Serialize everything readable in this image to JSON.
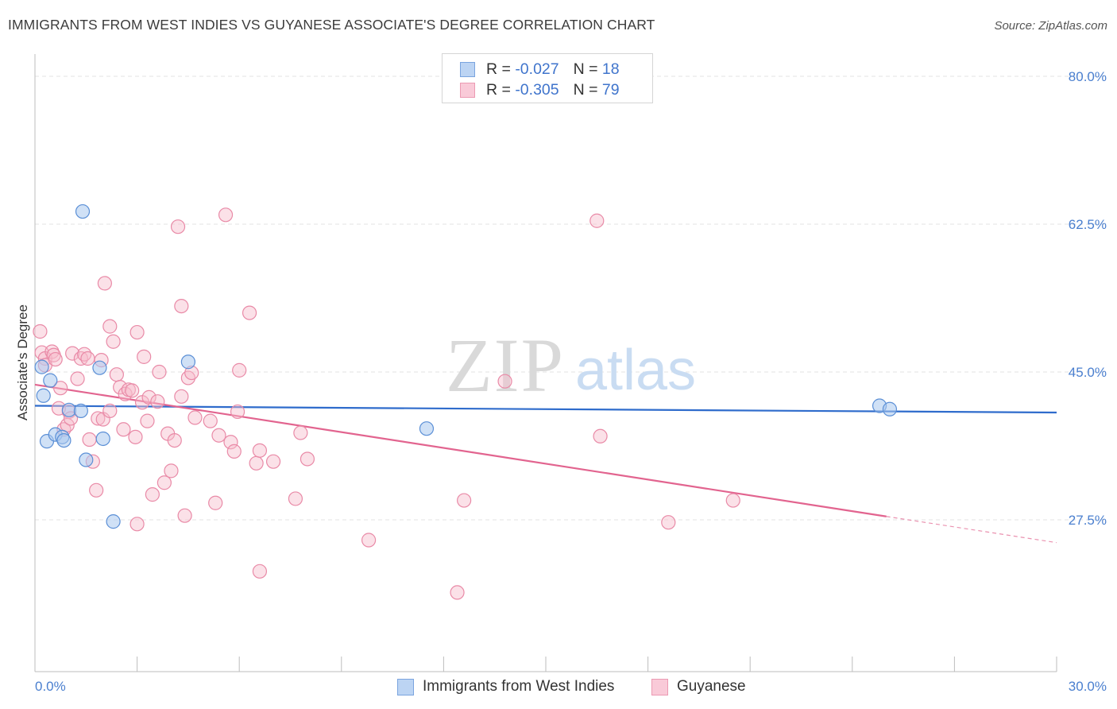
{
  "title": "IMMIGRANTS FROM WEST INDIES VS GUYANESE ASSOCIATE'S DEGREE CORRELATION CHART",
  "source": "Source: ZipAtlas.com",
  "colors": {
    "blue_fill": "#a9c8ef",
    "blue_stroke": "#5b8fd6",
    "blue_line": "#2f6ccc",
    "pink_fill": "#f6bccd",
    "pink_stroke": "#e98aa7",
    "pink_line": "#e2648f",
    "tick_label": "#4a7fcf",
    "grid": "#e3e3e3"
  },
  "legend": {
    "rows": [
      {
        "r_label": "R = ",
        "r_value": "-0.027",
        "n_label": "N = ",
        "n_value": "18"
      },
      {
        "r_label": "R = ",
        "r_value": "-0.305",
        "n_label": "N = ",
        "n_value": "79"
      }
    ]
  },
  "bottom_legend": [
    "Immigrants from West Indies",
    "Guyanese"
  ],
  "chart_data": {
    "type": "scatter",
    "title": "IMMIGRANTS FROM WEST INDIES VS GUYANESE ASSOCIATE'S DEGREE CORRELATION CHART",
    "xlabel": "",
    "ylabel": "Associate's Degree",
    "xlim": [
      0,
      30
    ],
    "ylim": [
      10,
      83
    ],
    "x_tick_labels": [
      {
        "value": 0,
        "label": "0.0%"
      },
      {
        "value": 30,
        "label": "30.0%"
      }
    ],
    "x_minor_ticks": [
      3,
      6,
      9,
      12,
      15,
      18,
      21,
      24,
      27,
      30
    ],
    "y_tick_labels": [
      {
        "value": 80,
        "label": "80.0%"
      },
      {
        "value": 62.5,
        "label": "62.5%"
      },
      {
        "value": 45,
        "label": "45.0%"
      },
      {
        "value": 27.5,
        "label": "27.5%"
      }
    ],
    "watermark": {
      "zip": "ZIP",
      "atlas": "atlas"
    },
    "series": [
      {
        "name": "Immigrants from West Indies",
        "color": "blue",
        "r": -0.027,
        "n": 18,
        "trend": {
          "x1": 0,
          "y1": 41.0,
          "x2": 30,
          "y2": 40.2
        },
        "points": [
          {
            "x": 0.2,
            "y": 45.6
          },
          {
            "x": 0.25,
            "y": 42.2
          },
          {
            "x": 0.35,
            "y": 36.8
          },
          {
            "x": 0.45,
            "y": 44.0
          },
          {
            "x": 0.6,
            "y": 37.6
          },
          {
            "x": 0.8,
            "y": 37.3
          },
          {
            "x": 0.85,
            "y": 36.9
          },
          {
            "x": 1.0,
            "y": 40.5
          },
          {
            "x": 1.35,
            "y": 40.4
          },
          {
            "x": 1.5,
            "y": 34.6
          },
          {
            "x": 1.9,
            "y": 45.5
          },
          {
            "x": 2.0,
            "y": 37.1
          },
          {
            "x": 1.4,
            "y": 64.0
          },
          {
            "x": 2.3,
            "y": 27.3
          },
          {
            "x": 4.5,
            "y": 46.2
          },
          {
            "x": 11.5,
            "y": 38.3
          },
          {
            "x": 24.8,
            "y": 41.0
          },
          {
            "x": 25.1,
            "y": 40.6
          }
        ]
      },
      {
        "name": "Guyanese",
        "color": "pink",
        "r": -0.305,
        "n": 79,
        "trend": {
          "x1": 0,
          "y1": 43.5,
          "x2": 25.0,
          "y2": 27.9
        },
        "trend_dashed": {
          "x1": 25.0,
          "y1": 27.9,
          "x2": 30,
          "y2": 24.8
        },
        "points": [
          {
            "x": 0.15,
            "y": 49.8
          },
          {
            "x": 0.2,
            "y": 47.3
          },
          {
            "x": 0.3,
            "y": 46.6
          },
          {
            "x": 0.3,
            "y": 45.8
          },
          {
            "x": 0.5,
            "y": 47.4
          },
          {
            "x": 0.55,
            "y": 47.0
          },
          {
            "x": 0.6,
            "y": 46.5
          },
          {
            "x": 0.7,
            "y": 40.7
          },
          {
            "x": 0.75,
            "y": 43.1
          },
          {
            "x": 0.85,
            "y": 38.2
          },
          {
            "x": 0.95,
            "y": 38.7
          },
          {
            "x": 1.0,
            "y": 40.3
          },
          {
            "x": 1.05,
            "y": 39.5
          },
          {
            "x": 1.1,
            "y": 47.2
          },
          {
            "x": 1.25,
            "y": 44.2
          },
          {
            "x": 1.35,
            "y": 46.6
          },
          {
            "x": 1.45,
            "y": 47.1
          },
          {
            "x": 1.55,
            "y": 46.6
          },
          {
            "x": 1.6,
            "y": 37.0
          },
          {
            "x": 1.7,
            "y": 34.4
          },
          {
            "x": 1.8,
            "y": 31.0
          },
          {
            "x": 1.85,
            "y": 39.5
          },
          {
            "x": 1.95,
            "y": 46.4
          },
          {
            "x": 2.0,
            "y": 39.4
          },
          {
            "x": 2.05,
            "y": 55.5
          },
          {
            "x": 2.2,
            "y": 40.4
          },
          {
            "x": 2.2,
            "y": 50.4
          },
          {
            "x": 2.3,
            "y": 48.6
          },
          {
            "x": 2.4,
            "y": 44.7
          },
          {
            "x": 2.5,
            "y": 43.2
          },
          {
            "x": 2.6,
            "y": 38.2
          },
          {
            "x": 2.65,
            "y": 42.4
          },
          {
            "x": 2.75,
            "y": 42.9
          },
          {
            "x": 2.85,
            "y": 42.8
          },
          {
            "x": 2.95,
            "y": 37.3
          },
          {
            "x": 3.0,
            "y": 27.0
          },
          {
            "x": 3.0,
            "y": 49.7
          },
          {
            "x": 3.15,
            "y": 41.4
          },
          {
            "x": 3.2,
            "y": 46.8
          },
          {
            "x": 3.3,
            "y": 39.2
          },
          {
            "x": 3.35,
            "y": 42.0
          },
          {
            "x": 3.45,
            "y": 30.5
          },
          {
            "x": 3.6,
            "y": 41.5
          },
          {
            "x": 3.65,
            "y": 45.0
          },
          {
            "x": 3.8,
            "y": 31.9
          },
          {
            "x": 3.9,
            "y": 37.7
          },
          {
            "x": 4.0,
            "y": 33.3
          },
          {
            "x": 4.1,
            "y": 36.9
          },
          {
            "x": 4.2,
            "y": 62.2
          },
          {
            "x": 4.3,
            "y": 42.1
          },
          {
            "x": 4.3,
            "y": 52.8
          },
          {
            "x": 4.4,
            "y": 28.0
          },
          {
            "x": 4.5,
            "y": 44.3
          },
          {
            "x": 4.6,
            "y": 44.9
          },
          {
            "x": 4.7,
            "y": 39.6
          },
          {
            "x": 5.15,
            "y": 39.2
          },
          {
            "x": 5.3,
            "y": 29.5
          },
          {
            "x": 5.4,
            "y": 37.5
          },
          {
            "x": 5.6,
            "y": 63.6
          },
          {
            "x": 5.75,
            "y": 36.7
          },
          {
            "x": 5.85,
            "y": 35.6
          },
          {
            "x": 5.95,
            "y": 40.3
          },
          {
            "x": 6.0,
            "y": 45.2
          },
          {
            "x": 6.3,
            "y": 52.0
          },
          {
            "x": 6.5,
            "y": 34.2
          },
          {
            "x": 6.6,
            "y": 35.7
          },
          {
            "x": 6.6,
            "y": 21.4
          },
          {
            "x": 7.0,
            "y": 34.4
          },
          {
            "x": 7.65,
            "y": 30.0
          },
          {
            "x": 7.8,
            "y": 37.8
          },
          {
            "x": 8.0,
            "y": 34.7
          },
          {
            "x": 9.8,
            "y": 25.1
          },
          {
            "x": 12.4,
            "y": 18.9
          },
          {
            "x": 12.6,
            "y": 29.8
          },
          {
            "x": 13.8,
            "y": 43.9
          },
          {
            "x": 16.5,
            "y": 62.9
          },
          {
            "x": 16.6,
            "y": 37.4
          },
          {
            "x": 18.6,
            "y": 27.2
          },
          {
            "x": 20.5,
            "y": 29.8
          }
        ]
      }
    ]
  }
}
